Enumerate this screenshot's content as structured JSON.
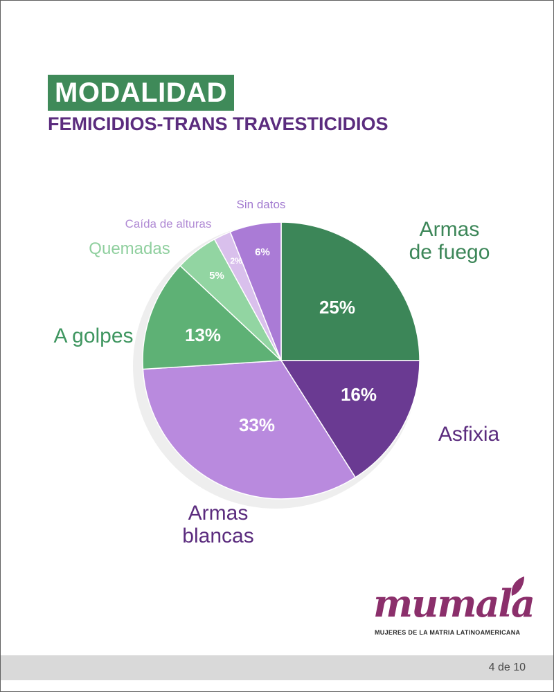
{
  "title": "MODALIDAD",
  "subtitle": "FEMICIDIOS-TRANS TRAVESTICIDIOS",
  "chart_data": {
    "type": "pie",
    "slices": [
      {
        "label": "Armas de fuego",
        "value": 25,
        "display": "25%",
        "color": "#3c8658",
        "text_color": "#3c8658"
      },
      {
        "label": "Asfixia",
        "value": 16,
        "display": "16%",
        "color": "#6a3a92",
        "text_color": "#5b2c7e"
      },
      {
        "label": "Armas blancas",
        "value": 33,
        "display": "33%",
        "color": "#b98ade",
        "text_color": "#5b2c7e"
      },
      {
        "label": "A golpes",
        "value": 13,
        "display": "13%",
        "color": "#5eb175",
        "text_color": "#3f9660"
      },
      {
        "label": "Quemadas",
        "value": 5,
        "display": "5%",
        "color": "#92d5a2",
        "text_color": "#8fcf9e"
      },
      {
        "label": "Caída de alturas",
        "value": 2,
        "display": "2%",
        "color": "#d9c0ec",
        "text_color": "#b08ad4"
      },
      {
        "label": "Sin datos",
        "value": 6,
        "display": "6%",
        "color": "#aa7bd6",
        "text_color": "#a27ad0"
      }
    ]
  },
  "logo": {
    "name": "mumala",
    "tagline": "MUJERES DE LA MATRIA LATINOAMERICANA",
    "color": "#8b2f6b"
  },
  "footer": {
    "page": "4 de 10"
  }
}
